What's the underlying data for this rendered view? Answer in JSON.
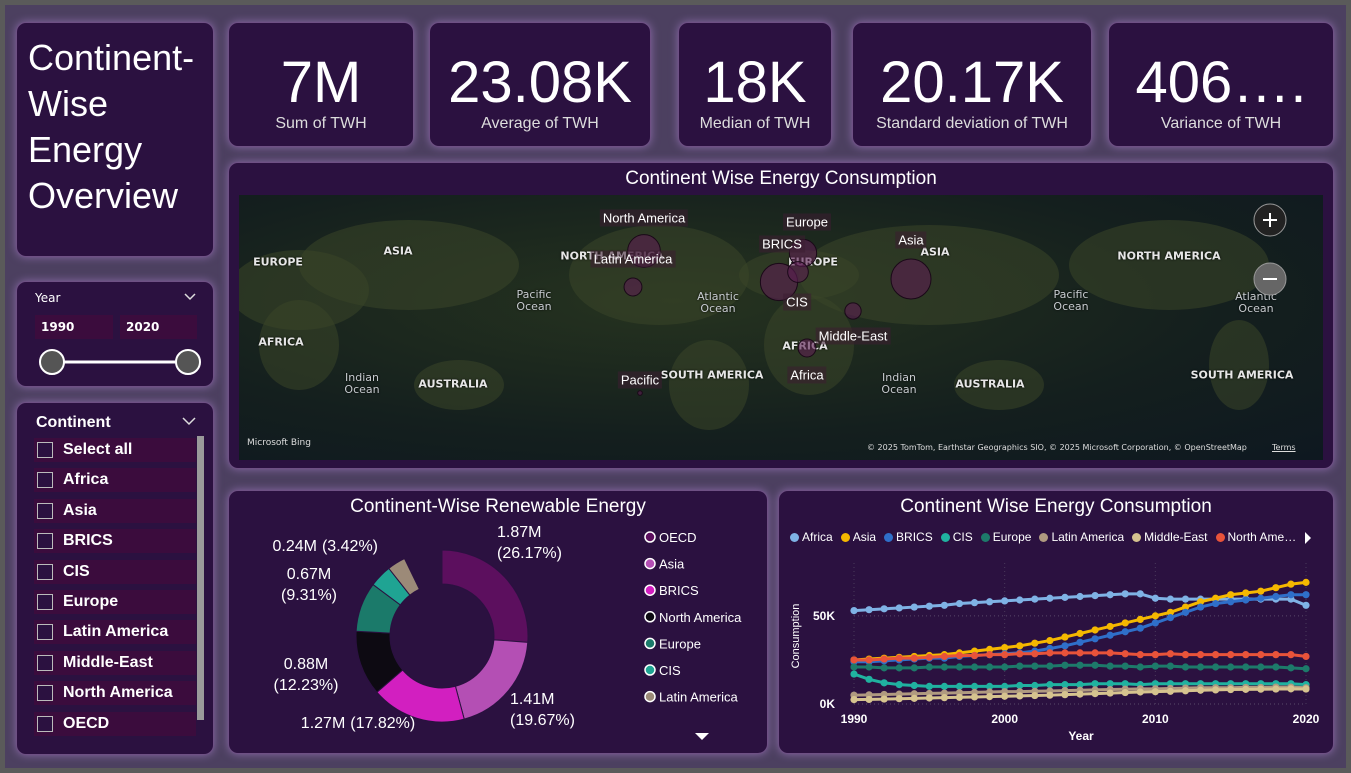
{
  "title": "Continent-Wise Energy Overview",
  "kpis": [
    {
      "value": "7M",
      "label": "Sum of TWH"
    },
    {
      "value": "23.08K",
      "label": "Average of TWH"
    },
    {
      "value": "18K",
      "label": "Median of TWH"
    },
    {
      "value": "20.17K",
      "label": "Standard deviation of TWH"
    },
    {
      "value": "406….",
      "label": "Variance of TWH"
    }
  ],
  "year_slicer": {
    "label": "Year",
    "start": "1990",
    "end": "2020"
  },
  "continent_slicer": {
    "label": "Continent",
    "items": [
      "Select all",
      "Africa",
      "Asia",
      "BRICS",
      "CIS",
      "Europe",
      "Latin America",
      "Middle-East",
      "North America",
      "OECD"
    ]
  },
  "chart_data": [
    {
      "type": "map",
      "title": "Continent Wise Energy Consumption",
      "base_labels": [
        "EUROPE",
        "ASIA",
        "Pacific Ocean",
        "Atlantic Ocean",
        "AFRICA",
        "Indian Ocean",
        "AUSTRALIA",
        "NORTH AMERICA",
        "EUROPE",
        "ASIA",
        "AFRICA",
        "SOUTH AMERICA",
        "Pacific Ocean",
        "Atlantic Ocean",
        "Indian Ocean",
        "AUSTRALIA",
        "NORTH AMERICA",
        "SOUTH AMERICA"
      ],
      "categories": [
        "North America",
        "Europe",
        "BRICS",
        "Asia",
        "Latin America",
        "CIS",
        "Middle-East",
        "Pacific",
        "Africa"
      ],
      "values": [
        1000000,
        700000,
        1300000,
        1500000,
        300000,
        400000,
        250000,
        20000,
        300000
      ],
      "color": "#5a1e50",
      "attribution": "Microsoft Bing",
      "credits": "© 2025 TomTom, Earthstar Geographics SIO, © 2025 Microsoft Corporation, © OpenStreetMap",
      "terms": "Terms"
    },
    {
      "type": "donut",
      "title": "Continent-Wise Renewable Energy",
      "categories": [
        "OECD",
        "Asia",
        "BRICS",
        "North America",
        "Europe",
        "CIS",
        "Latin America"
      ],
      "values": [
        1870000,
        1410000,
        1270000,
        880000,
        670000,
        300000,
        240000
      ],
      "percents": [
        26.17,
        19.67,
        17.82,
        12.23,
        9.31,
        4.2,
        3.42
      ],
      "value_labels": [
        [
          "1.87M",
          "(26.17%)"
        ],
        [
          "1.41M",
          "(19.67%)"
        ],
        [
          "1.27M",
          "(17.82%)"
        ],
        [
          "0.88M",
          "(12.23%)"
        ],
        [
          "0.67M",
          "(9.31%)"
        ],
        null,
        [
          "0.24M",
          "(3.42%)"
        ]
      ],
      "colors": [
        "#5c0f5e",
        "#b44fb4",
        "#d21fc0",
        "#0d0a12",
        "#1b7a6a",
        "#1fa493",
        "#9c8a78"
      ]
    },
    {
      "type": "line",
      "title": "Continent Wise Energy Consumption",
      "x": [
        1990,
        1991,
        1992,
        1993,
        1994,
        1995,
        1996,
        1997,
        1998,
        1999,
        2000,
        2001,
        2002,
        2003,
        2004,
        2005,
        2006,
        2007,
        2008,
        2009,
        2010,
        2011,
        2012,
        2013,
        2014,
        2015,
        2016,
        2017,
        2018,
        2019,
        2020
      ],
      "xlim": [
        1990,
        2020
      ],
      "xticks": [
        1990,
        2000,
        2010,
        2020
      ],
      "ylim": [
        0,
        80000
      ],
      "yticks": [
        {
          "value": 0,
          "label": "0K"
        },
        {
          "value": 50000,
          "label": "50K"
        }
      ],
      "xlabel": "Year",
      "ylabel": "Consumption",
      "grid": true,
      "series": [
        {
          "name": "Africa",
          "color": "#7fb2e5",
          "values": [
            53000,
            53500,
            54000,
            54500,
            55000,
            55500,
            56000,
            57000,
            57500,
            58000,
            58500,
            59000,
            59500,
            60000,
            60500,
            61000,
            61500,
            62000,
            62500,
            62500,
            60000,
            59500,
            59500,
            59500,
            59500,
            59500,
            59500,
            59500,
            59500,
            59500,
            56000
          ]
        },
        {
          "name": "Asia",
          "color": "#f5b800",
          "values": [
            25000,
            25500,
            26000,
            26500,
            27000,
            27500,
            28000,
            29000,
            30000,
            31000,
            32000,
            33000,
            34500,
            36000,
            38000,
            40000,
            42000,
            44000,
            46000,
            48000,
            50000,
            52000,
            55000,
            58000,
            60000,
            62000,
            63000,
            64000,
            66000,
            68000,
            69000
          ]
        },
        {
          "name": "BRICS",
          "color": "#2f6fc9",
          "values": [
            24000,
            24000,
            24500,
            25000,
            25500,
            26000,
            26000,
            27000,
            27500,
            28000,
            28500,
            29000,
            30000,
            31500,
            33000,
            35000,
            37000,
            39000,
            41000,
            43000,
            46000,
            49000,
            52000,
            55000,
            57000,
            58000,
            59000,
            60000,
            61000,
            62000,
            62000
          ]
        },
        {
          "name": "CIS",
          "color": "#20b2a0",
          "values": [
            17000,
            14000,
            12000,
            11000,
            10500,
            10000,
            10000,
            10000,
            10000,
            10000,
            10000,
            10500,
            10500,
            11000,
            11000,
            11000,
            11500,
            11500,
            11500,
            11000,
            11500,
            11500,
            11500,
            11500,
            11500,
            11500,
            11500,
            11500,
            11500,
            11500,
            11000
          ]
        },
        {
          "name": "Europe",
          "color": "#1d7a6a",
          "values": [
            21000,
            21000,
            20500,
            20500,
            20500,
            21000,
            21000,
            21000,
            21000,
            21000,
            21000,
            21500,
            21500,
            21500,
            22000,
            22000,
            22000,
            21500,
            21500,
            21000,
            21500,
            21500,
            21000,
            21000,
            21000,
            21000,
            21000,
            21000,
            21000,
            20500,
            20000
          ]
        },
        {
          "name": "Latin America",
          "color": "#b09a80",
          "values": [
            5000,
            5200,
            5400,
            5600,
            5800,
            6000,
            6200,
            6400,
            6600,
            6800,
            7000,
            7000,
            7200,
            7400,
            7600,
            7800,
            8000,
            8200,
            8400,
            8600,
            8600,
            8800,
            9000,
            9200,
            9200,
            9200,
            9400,
            9400,
            9600,
            9600,
            9200
          ]
        },
        {
          "name": "Middle-East",
          "color": "#d6c38f",
          "values": [
            2500,
            2600,
            2800,
            3000,
            3200,
            3400,
            3600,
            3800,
            4000,
            4200,
            4400,
            4600,
            4800,
            5000,
            5300,
            5600,
            5900,
            6200,
            6500,
            6800,
            7000,
            7200,
            7500,
            7800,
            8000,
            8200,
            8300,
            8400,
            8500,
            8600,
            8500
          ]
        },
        {
          "name": "North America",
          "color": "#e8533a",
          "values": [
            25000,
            25000,
            25500,
            26000,
            26000,
            26500,
            27000,
            27500,
            27500,
            28000,
            28000,
            28500,
            28500,
            29000,
            29000,
            29000,
            29000,
            29000,
            28500,
            28000,
            28000,
            28500,
            28000,
            28000,
            28000,
            28000,
            28000,
            28000,
            28000,
            28000,
            27000
          ]
        }
      ]
    }
  ]
}
